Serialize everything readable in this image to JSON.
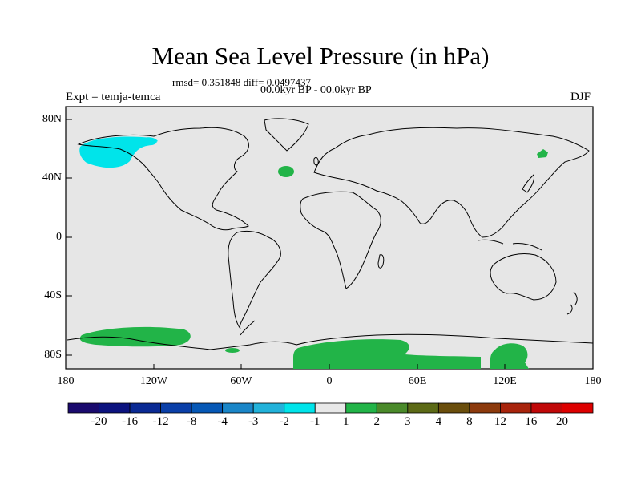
{
  "title": "Mean Sea Level Pressure (in hPa)",
  "subtitle_stats": "rmsd= 0.351848 diff= 0.0497437",
  "subtitle_period": "00.0kyr BP - 00.0kyr BP",
  "experiment": "Expt = temja-temca",
  "season": "DJF",
  "lat_labels": [
    "80N",
    "40N",
    "0",
    "40S",
    "80S"
  ],
  "lon_labels": [
    "180",
    "120W",
    "60W",
    "0",
    "60E",
    "120E",
    "180"
  ],
  "colorbar": {
    "labels": [
      "-20",
      "-16",
      "-12",
      "-8",
      "-4",
      "-3",
      "-2",
      "-1",
      "1",
      "2",
      "3",
      "4",
      "8",
      "12",
      "16",
      "20"
    ],
    "colors": [
      "#1a0a6e",
      "#0c137f",
      "#0a2a94",
      "#0a3fa8",
      "#0658b6",
      "#1a86c8",
      "#22b2da",
      "#00e4ea",
      "#e8e8e8",
      "#22b448",
      "#4a8a2a",
      "#5c6a16",
      "#6a4e0c",
      "#8c3a0c",
      "#a8240c",
      "#c00808",
      "#dd0000"
    ]
  },
  "colors": {
    "background_field": "#e6e6e6",
    "negative_anomaly": "#00e4ea",
    "positive_anomaly": "#22b448"
  }
}
